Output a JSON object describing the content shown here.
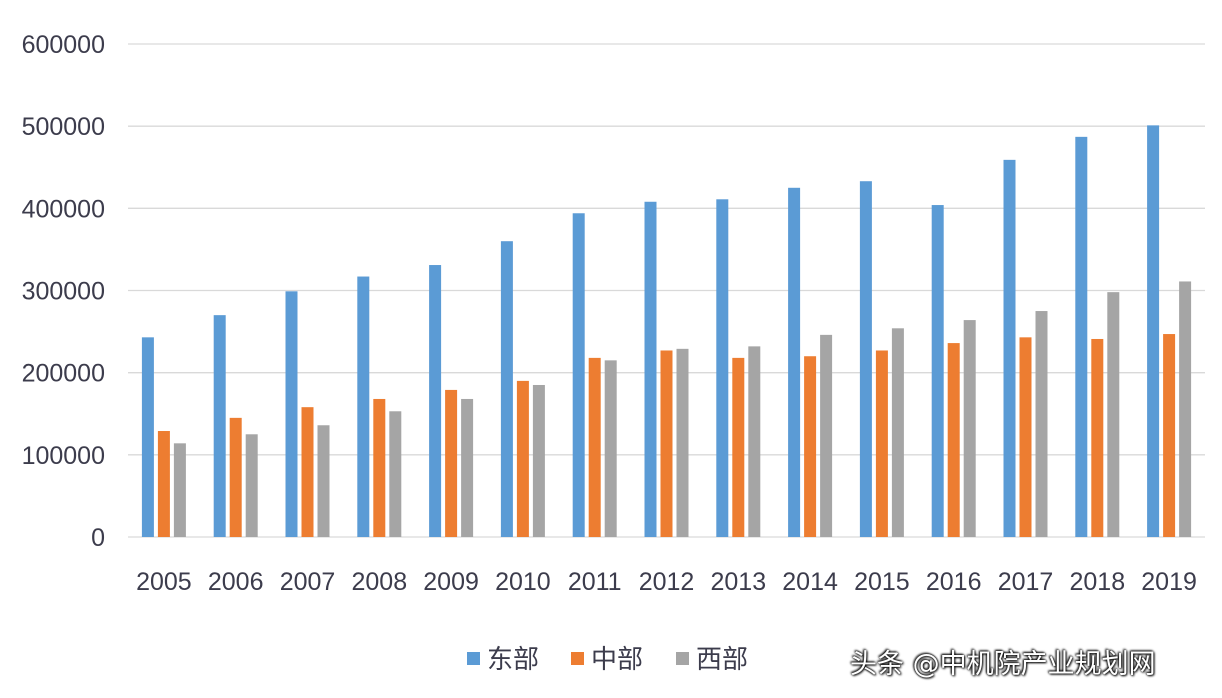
{
  "chart_data": {
    "type": "bar",
    "title": "",
    "xlabel": "",
    "ylabel": "",
    "ylim": [
      0,
      600000
    ],
    "yticks": [
      0,
      100000,
      200000,
      300000,
      400000,
      500000,
      600000
    ],
    "grid": true,
    "legend_position": "bottom",
    "categories": [
      "2005",
      "2006",
      "2007",
      "2008",
      "2009",
      "2010",
      "2011",
      "2012",
      "2013",
      "2014",
      "2015",
      "2016",
      "2017",
      "2018",
      "2019"
    ],
    "series": [
      {
        "name": "东部",
        "color": "#5b9bd5",
        "values": [
          243000,
          270000,
          299000,
          317000,
          331000,
          360000,
          394000,
          408000,
          411000,
          425000,
          433000,
          404000,
          459000,
          487000,
          501000
        ]
      },
      {
        "name": "中部",
        "color": "#ed7d31",
        "values": [
          129000,
          145000,
          158000,
          168000,
          179000,
          190000,
          218000,
          227000,
          218000,
          220000,
          227000,
          236000,
          243000,
          241000,
          247000
        ]
      },
      {
        "name": "西部",
        "color": "#a5a5a5",
        "values": [
          114000,
          125000,
          136000,
          153000,
          168000,
          185000,
          215000,
          229000,
          232000,
          246000,
          254000,
          264000,
          275000,
          298000,
          311000
        ]
      }
    ]
  },
  "watermark": "头条 @中机院产业规划网"
}
